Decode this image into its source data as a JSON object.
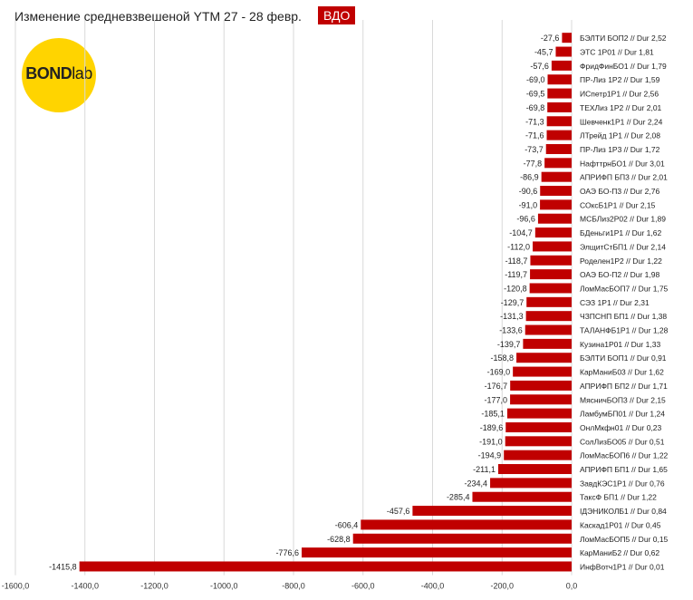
{
  "header": {
    "title": "Изменение средневзвешеной YTM 27 - 28 февр.",
    "badge": "ВДО"
  },
  "logo": {
    "part1": "BOND",
    "part2": "lab",
    "color": "#ffd400"
  },
  "colors": {
    "bar": "#c00000",
    "grid": "#d9d9d9"
  },
  "chart_data": {
    "type": "bar",
    "orientation": "horizontal",
    "categories": [
      "БЭЛТИ БОП2 // Dur 2,52",
      "ЭТС 1Р01 // Dur 1,81",
      "ФридФинБО1 // Dur 1,79",
      "ПР-Лиз 1Р2 // Dur 1,59",
      "ИСпетр1Р1 // Dur 2,56",
      "ТЕХЛиз 1Р2 // Dur 2,01",
      "Шевченк1Р1 // Dur 2,24",
      "ЛТрейд 1Р1 // Dur 2,08",
      "ПР-Лиз 1Р3 // Dur 1,72",
      "НафттрнБО1 // Dur 3,01",
      "АПРИФП БП3 // Dur 2,01",
      "ОАЭ БО-П3 // Dur 2,76",
      "СОксБ1Р1 // Dur 2,15",
      "МСБЛиз2Р02 // Dur 1,89",
      "БДеньги1Р1 // Dur 1,62",
      "ЭлщитСтБП1 // Dur 2,14",
      "Роделен1Р2 // Dur 1,22",
      "ОАЭ БО-П2 // Dur 1,98",
      "ЛомМасБОП7 // Dur 1,75",
      "СЭЗ 1Р1 // Dur 2,31",
      "ЧЗПСНП БП1 // Dur 1,38",
      "ТАЛАНФБ1Р1 // Dur 1,28",
      "Кузина1Р01 // Dur 1,33",
      "БЭЛТИ БОП1 // Dur 0,91",
      "КарМаниБ03 // Dur 1,62",
      "АПРИФП БП2 // Dur 1,71",
      "МясничБОП3 // Dur 2,15",
      "ЛамбумБП01 // Dur 1,24",
      "ОнлМкфн01 // Dur 0,23",
      "СолЛизБО05 // Dur 0,51",
      "ЛомМасБОП6 // Dur 1,22",
      "АПРИФП БП1 // Dur 1,65",
      "ЗавдКЭС1Р1 // Dur 0,76",
      "ТаксФ БП1 // Dur 1,22",
      "IДЭНИКОЛБ1 // Dur 0,84",
      "Каскад1Р01 // Dur 0,45",
      "ЛомМасБОП5 // Dur 0,15",
      "КарМаниБ2 // Dur 0,62",
      "ИнфВотч1Р1 // Dur 0,01"
    ],
    "values": [
      -27.6,
      -45.7,
      -57.6,
      -69.0,
      -69.5,
      -69.8,
      -71.3,
      -71.6,
      -73.7,
      -77.8,
      -86.9,
      -90.6,
      -91.0,
      -96.6,
      -104.7,
      -112.0,
      -118.7,
      -119.7,
      -120.8,
      -129.7,
      -131.3,
      -133.6,
      -139.7,
      -158.8,
      -169.0,
      -176.7,
      -177.0,
      -185.1,
      -189.6,
      -191.0,
      -194.9,
      -211.1,
      -234.4,
      -285.4,
      -457.6,
      -606.4,
      -628.8,
      -776.6,
      -1415.8
    ],
    "value_labels": [
      "-27,6",
      "-45,7",
      "-57,6",
      "-69,0",
      "-69,5",
      "-69,8",
      "-71,3",
      "-71,6",
      "-73,7",
      "-77,8",
      "-86,9",
      "-90,6",
      "-91,0",
      "-96,6",
      "-104,7",
      "-112,0",
      "-118,7",
      "-119,7",
      "-120,8",
      "-129,7",
      "-131,3",
      "-133,6",
      "-139,7",
      "-158,8",
      "-169,0",
      "-176,7",
      "-177,0",
      "-185,1",
      "-189,6",
      "-191,0",
      "-194,9",
      "-211,1",
      "-234,4",
      "-285,4",
      "-457,6",
      "-606,4",
      "-628,8",
      "-776,6",
      "-1415,8"
    ],
    "xlim": [
      -1600,
      0
    ],
    "xticks": [
      -1600,
      -1400,
      -1200,
      -1000,
      -800,
      -600,
      -400,
      -200,
      0
    ],
    "xtick_labels": [
      "-1600,0",
      "-1400,0",
      "-1200,0",
      "-1000,0",
      "-800,0",
      "-600,0",
      "-400,0",
      "-200,0",
      "0,0"
    ],
    "grid": true,
    "title": "",
    "xlabel": "",
    "ylabel": ""
  }
}
